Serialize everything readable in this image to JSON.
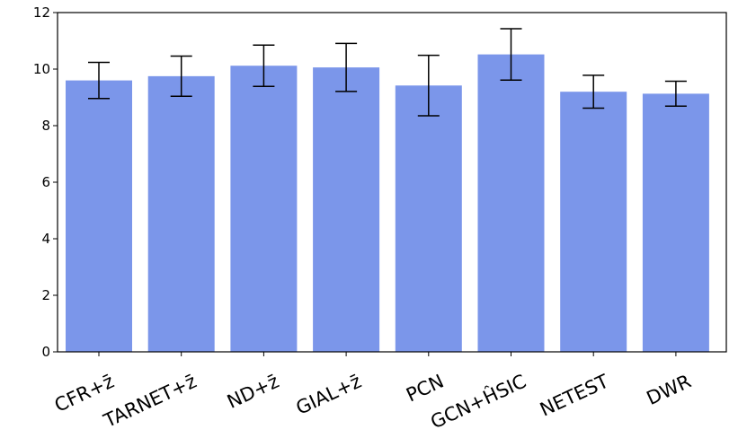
{
  "chart_data": {
    "type": "bar",
    "categories": [
      "CFR+z̄",
      "TARNET+z̄",
      "ND+z̄",
      "GIAL+z̄",
      "PCN",
      "GCN+ĤSIC",
      "NETEST",
      "DWR"
    ],
    "values": [
      9.6,
      9.75,
      10.12,
      10.06,
      9.42,
      10.52,
      9.2,
      9.13
    ],
    "errors": [
      0.64,
      0.71,
      0.73,
      0.85,
      1.07,
      0.91,
      0.58,
      0.44
    ],
    "title": "",
    "xlabel": "",
    "ylabel": "",
    "ylim": [
      0,
      12
    ],
    "yticks": [
      "0",
      "2",
      "4",
      "6",
      "8",
      "10",
      "12"
    ],
    "bar_color": "#7b96ea",
    "error_color": "#000000",
    "grid": false,
    "legend": "none"
  }
}
